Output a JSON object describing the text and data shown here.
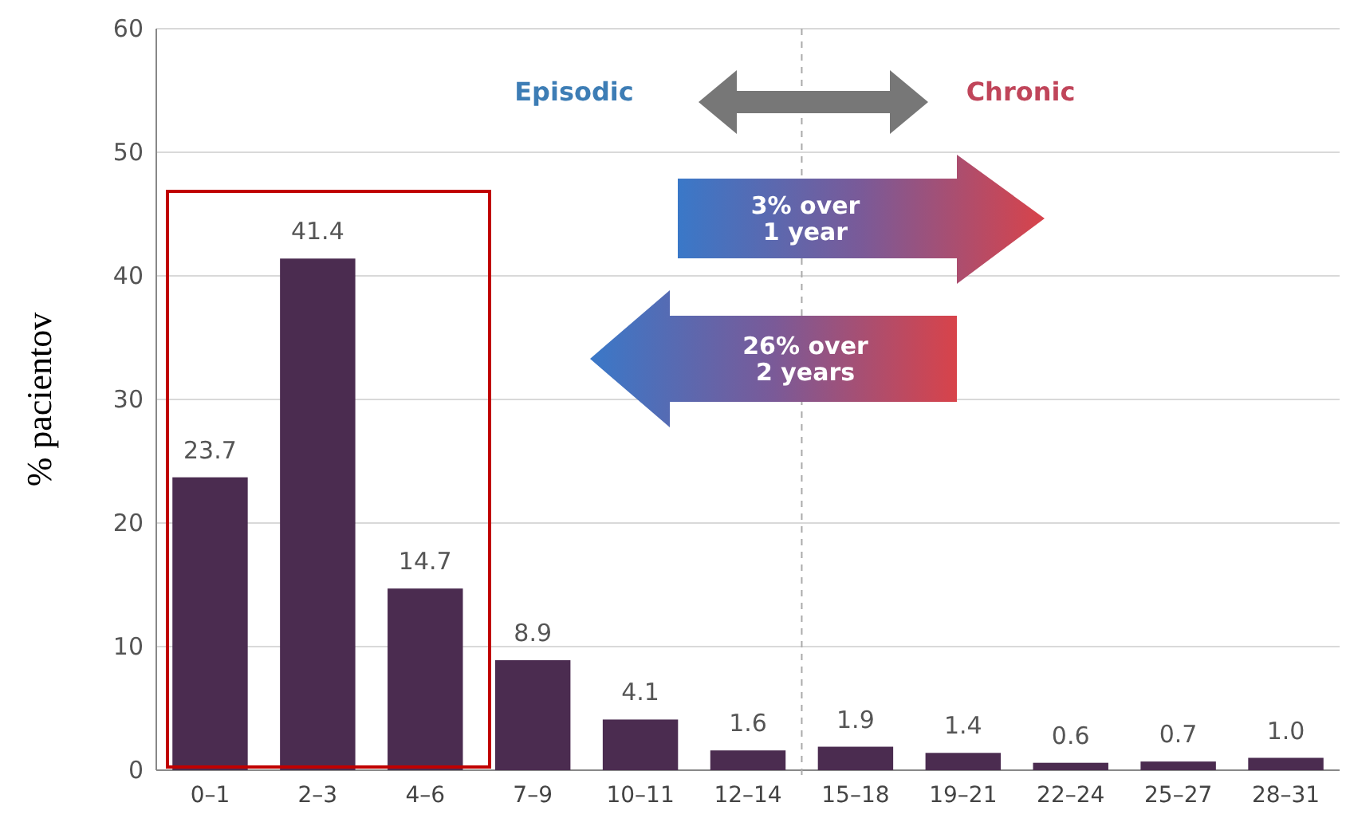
{
  "chart_data": {
    "type": "bar",
    "ylabel": "% pacientov",
    "categories": [
      "0–1",
      "2–3",
      "4–6",
      "7–9",
      "10–11",
      "12–14",
      "15–18",
      "19–21",
      "22–24",
      "25–27",
      "28–31"
    ],
    "values": [
      23.7,
      41.4,
      14.7,
      8.9,
      4.1,
      1.6,
      1.9,
      1.4,
      0.6,
      0.7,
      1.0
    ],
    "value_labels": [
      "23.7",
      "41.4",
      "14.7",
      "8.9",
      "4.1",
      "1.6",
      "1.9",
      "1.4",
      "0.6",
      "0.7",
      "1.0"
    ],
    "color": "#4b2c50",
    "ylim": [
      0,
      60
    ],
    "yticks": [
      0,
      10,
      20,
      30,
      40,
      50,
      60
    ],
    "grid": "y",
    "annotations": [
      "Episodic",
      "Chronic",
      "3% over\n1 year",
      "26% over\n2 years"
    ]
  }
}
